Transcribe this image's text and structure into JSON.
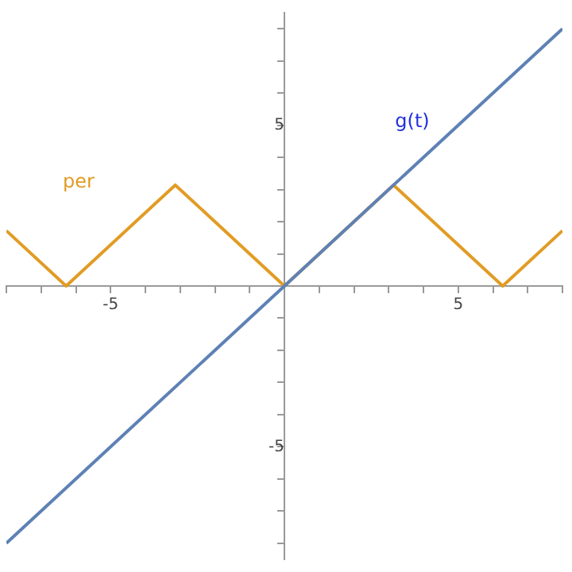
{
  "chart_data": {
    "type": "line",
    "xlim": [
      -8,
      8
    ],
    "ylim": [
      -8.5,
      8.5
    ],
    "xticks": [
      {
        "value": -8,
        "label": null
      },
      {
        "value": -7,
        "label": null
      },
      {
        "value": -6,
        "label": null
      },
      -5,
      {
        "value": -4,
        "label": null
      },
      {
        "value": -3,
        "label": null
      },
      {
        "value": -2,
        "label": null
      },
      {
        "value": -1,
        "label": null
      },
      {
        "value": 1,
        "label": null
      },
      {
        "value": 2,
        "label": null
      },
      {
        "value": 3,
        "label": null
      },
      {
        "value": 4,
        "label": null
      },
      5,
      {
        "value": 6,
        "label": null
      },
      {
        "value": 7,
        "label": null
      },
      {
        "value": 8,
        "label": null
      }
    ],
    "yticks": [
      {
        "value": -8,
        "label": null
      },
      {
        "value": -7,
        "label": null
      },
      {
        "value": -6,
        "label": null
      },
      -5,
      {
        "value": -4,
        "label": null
      },
      {
        "value": -3,
        "label": null
      },
      {
        "value": -2,
        "label": null
      },
      {
        "value": -1,
        "label": null
      },
      {
        "value": 1,
        "label": null
      },
      {
        "value": 2,
        "label": null
      },
      {
        "value": 3,
        "label": null
      },
      {
        "value": 4,
        "label": null
      },
      5,
      {
        "value": 6,
        "label": null
      },
      {
        "value": 7,
        "label": null
      },
      {
        "value": 8,
        "label": null
      }
    ],
    "series": [
      {
        "name": "g(t)",
        "color": "#5e81b5",
        "x": [
          -8,
          8
        ],
        "values": [
          -8,
          8
        ]
      },
      {
        "name": "per",
        "color": "#e19c24",
        "x": [
          -8,
          -6.28,
          -3.14,
          0,
          3.14,
          6.28,
          8
        ],
        "values": [
          1.72,
          0,
          3.14,
          0,
          3.14,
          0,
          1.72
        ]
      }
    ],
    "marker": "none",
    "grid": false,
    "legend": false,
    "line_style": "solid"
  }
}
